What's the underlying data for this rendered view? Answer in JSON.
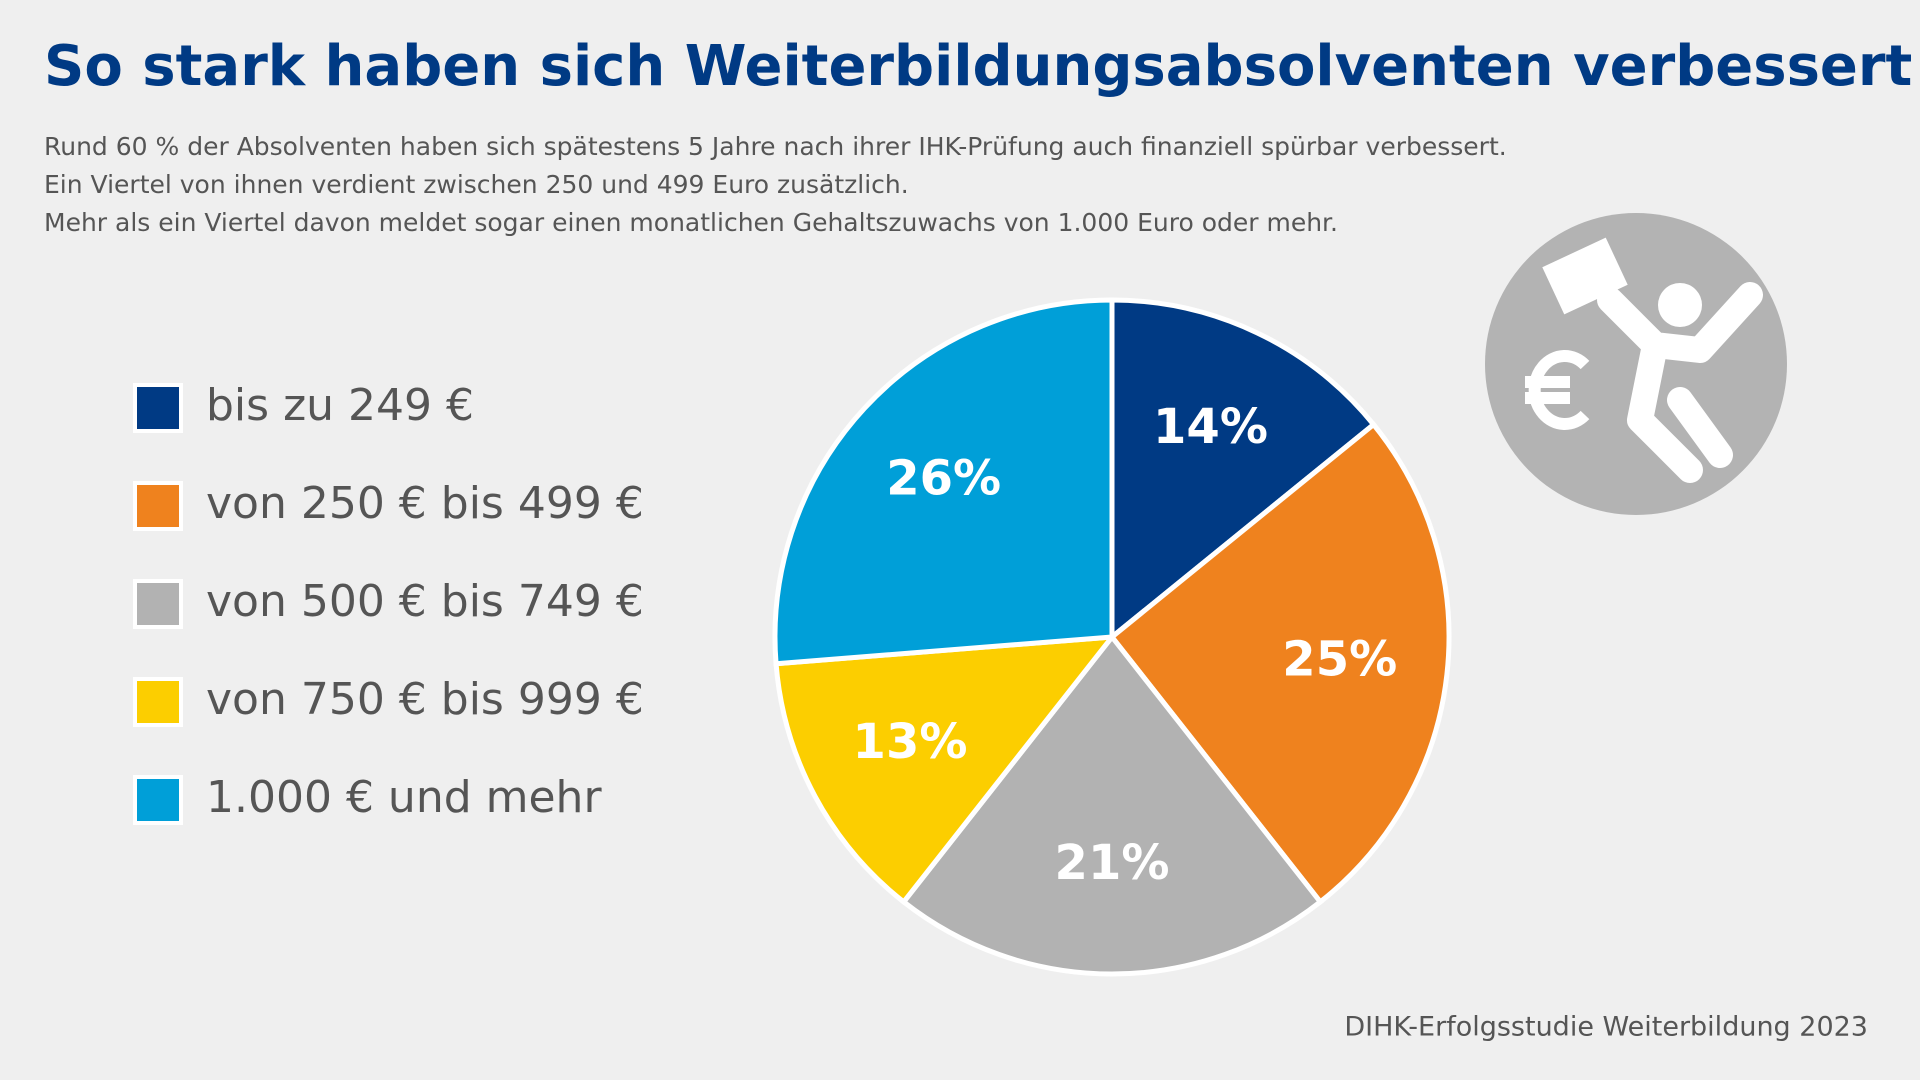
{
  "chart_data": {
    "type": "pie",
    "title": "So stark haben sich Weiterbildungsabsolventen verbessert",
    "subtitle": [
      "Rund 60 % der Absolventen haben sich spätestens 5 Jahre nach ihrer IHK-Prüfung auch finanziell spürbar verbessert.",
      "Ein Viertel von ihnen verdient zwischen 250 und 499 Euro zusätzlich.",
      "Mehr als ein Viertel davon meldet sogar einen monatlichen Gehaltszuwachs von 1.000 Euro oder mehr."
    ],
    "categories": [
      "bis zu 249 €",
      "von 250 € bis 499 €",
      "von 500 € bis 749 €",
      "von 750 € bis 999 €",
      "1.000 € und mehr"
    ],
    "values": [
      14,
      25,
      21,
      13,
      26
    ],
    "value_labels": [
      "14%",
      "25%",
      "21%",
      "13%",
      "26%"
    ],
    "colors": [
      "#003a84",
      "#ef821e",
      "#b2b2b2",
      "#fcce00",
      "#009fd8"
    ],
    "source": "DIHK-Erfolgsstudie Weiterbildung 2023"
  }
}
